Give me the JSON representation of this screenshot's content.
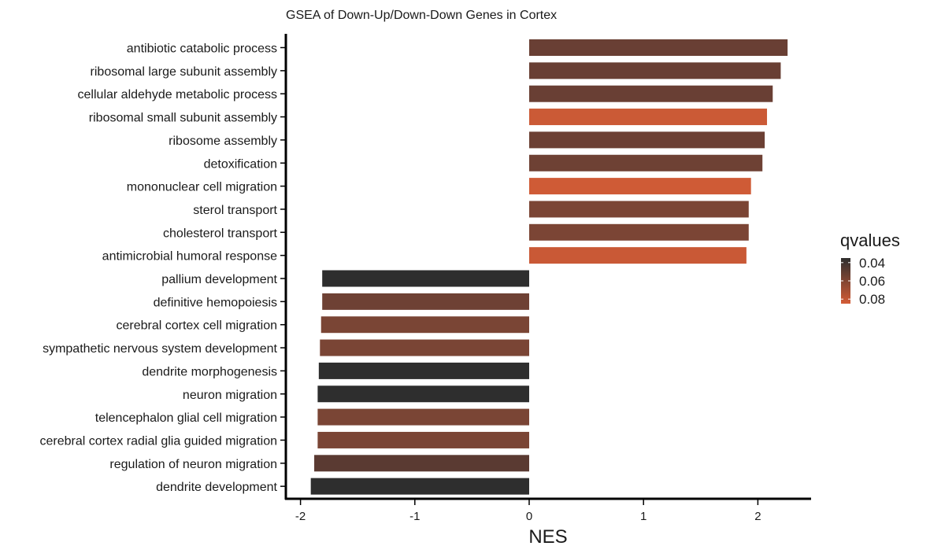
{
  "chart_data": {
    "type": "bar",
    "orientation": "horizontal",
    "title": "GSEA of Down-Up/Down-Down Genes in Cortex",
    "xlabel": "NES",
    "ylabel": "",
    "xlim": [
      -2.2,
      2.47
    ],
    "x_ticks": [
      -2,
      -1,
      0,
      1,
      2
    ],
    "x_tick_labels": [
      "-2",
      "-1",
      "0",
      "1",
      "2"
    ],
    "grid": false,
    "categories": [
      "antibiotic catabolic process",
      "ribosomal large subunit assembly",
      "cellular aldehyde metabolic process",
      "ribosomal small subunit assembly",
      "ribosome assembly",
      "detoxification",
      "mononuclear cell migration",
      "sterol transport",
      "cholesterol transport",
      "antimicrobial humoral response",
      "pallium development",
      "definitive hemopoiesis",
      "cerebral cortex cell migration",
      "sympathetic nervous system development",
      "dendrite morphogenesis",
      "neuron migration",
      "telencephalon glial cell migration",
      "cerebral cortex radial glia guided migration",
      "regulation of neuron migration",
      "dendrite development"
    ],
    "values": [
      2.26,
      2.2,
      2.13,
      2.08,
      2.06,
      2.04,
      1.94,
      1.92,
      1.92,
      1.9,
      -1.81,
      -1.81,
      -1.82,
      -1.83,
      -1.84,
      -1.85,
      -1.85,
      -1.85,
      -1.88,
      -1.91
    ],
    "qvalues": [
      0.055,
      0.055,
      0.055,
      0.085,
      0.06,
      0.06,
      0.085,
      0.065,
      0.065,
      0.085,
      0.035,
      0.06,
      0.06,
      0.06,
      0.035,
      0.035,
      0.06,
      0.06,
      0.05,
      0.035
    ],
    "colors": [
      "#693f34",
      "#693f34",
      "#693f34",
      "#cb5a36",
      "#6c4034",
      "#6e4134",
      "#cf5b36",
      "#7b4535",
      "#7b4535",
      "#c95936",
      "#2e2e2e",
      "#6e4134",
      "#7a4535",
      "#7a4535",
      "#2e2e2e",
      "#2e2e2e",
      "#7a4535",
      "#7a4535",
      "#5a3a32",
      "#2e2e2e"
    ],
    "legend": {
      "title": "qvalues",
      "position": "right",
      "labels": [
        "0.04",
        "0.06",
        "0.08"
      ],
      "color_low": "#2e2e2e",
      "color_high": "#d45c36",
      "qmin": 0.035,
      "qmax": 0.085
    }
  }
}
